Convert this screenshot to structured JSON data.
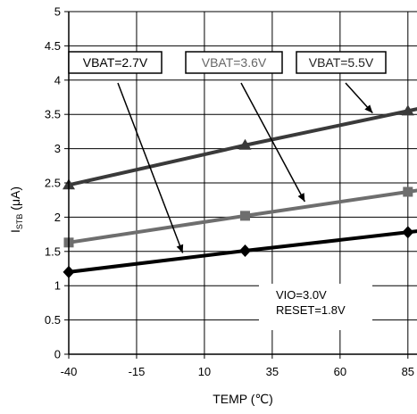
{
  "chart_data": {
    "type": "line",
    "xlabel": "TEMP (℃)",
    "ylabel": "I",
    "ylabel_sub": "STB",
    "ylabel_unit": " (μA)",
    "xlim": [
      -40,
      90
    ],
    "ylim": [
      0,
      5
    ],
    "x_ticks": [
      -40,
      -15,
      10,
      35,
      60,
      85
    ],
    "x_tick_labels": [
      "-40",
      "-15",
      "10",
      "35",
      "60",
      "85"
    ],
    "y_ticks": [
      0,
      0.5,
      1,
      1.5,
      2,
      2.5,
      3,
      3.5,
      4,
      4.5,
      5
    ],
    "y_tick_labels": [
      "0",
      "0.5",
      "1",
      "1.5",
      "2",
      "2.5",
      "3",
      "3.5",
      "4",
      "4.5",
      "5"
    ],
    "grid": true,
    "series": [
      {
        "name": "VBAT=5.5V",
        "color": "#3a3a3a",
        "marker": "triangle",
        "x": [
          -40,
          25,
          85
        ],
        "y": [
          2.47,
          3.05,
          3.55
        ]
      },
      {
        "name": "VBAT=3.6V",
        "color": "#6e6e6e",
        "marker": "square",
        "x": [
          -40,
          25,
          85
        ],
        "y": [
          1.63,
          2.02,
          2.37
        ]
      },
      {
        "name": "VBAT=2.7V",
        "color": "#000000",
        "marker": "diamond",
        "x": [
          -40,
          25,
          85
        ],
        "y": [
          1.2,
          1.51,
          1.78
        ]
      }
    ],
    "annotations": {
      "label_27": "VBAT=2.7V",
      "label_36": "VBAT=3.6V",
      "label_55": "VBAT=5.5V",
      "note_line1": "VIO=3.0V",
      "note_line2": "RESET=1.8V"
    }
  }
}
